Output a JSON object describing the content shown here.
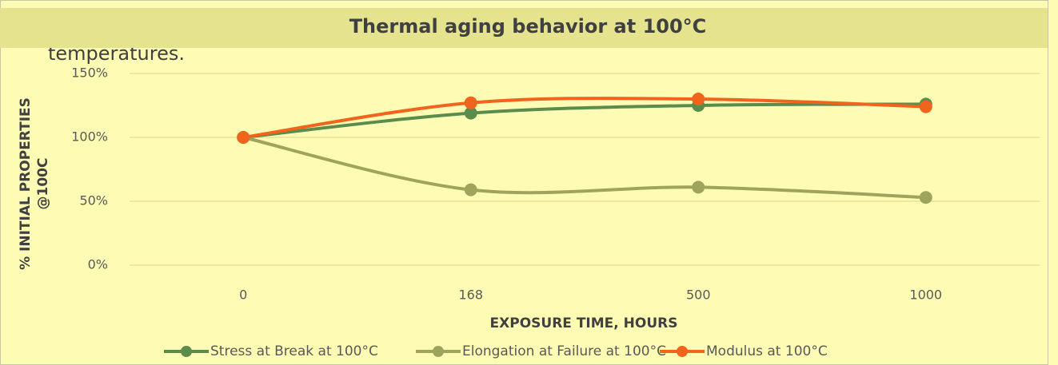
{
  "chart_data": {
    "type": "line",
    "title": "Thermal aging behavior at 100°C",
    "note": "temperatures.",
    "x_label": "EXPOSURE TIME, HOURS",
    "y_label": [
      "% INITIAL PROPERTIES",
      "@100C"
    ],
    "categories": [
      "0",
      "168",
      "500",
      "1000"
    ],
    "series": [
      {
        "name": "Stress at Break at 100°C",
        "color": "#5b8c4c",
        "values": [
          100,
          119,
          125,
          126
        ]
      },
      {
        "name": "Elongation at Failure at 100°C",
        "color": "#9ea45c",
        "values": [
          100,
          59,
          61,
          53
        ]
      },
      {
        "name": "Modulus at 100°C",
        "color": "#f0641e",
        "values": [
          100,
          127,
          130,
          124
        ]
      }
    ],
    "ylim": [
      0,
      150
    ],
    "yticks": [
      {
        "value": 0,
        "label": "0%"
      },
      {
        "value": 50,
        "label": "50%"
      },
      {
        "value": 100,
        "label": "100%"
      },
      {
        "value": 150,
        "label": "150%"
      }
    ],
    "grid": true,
    "legend": "bottom"
  }
}
